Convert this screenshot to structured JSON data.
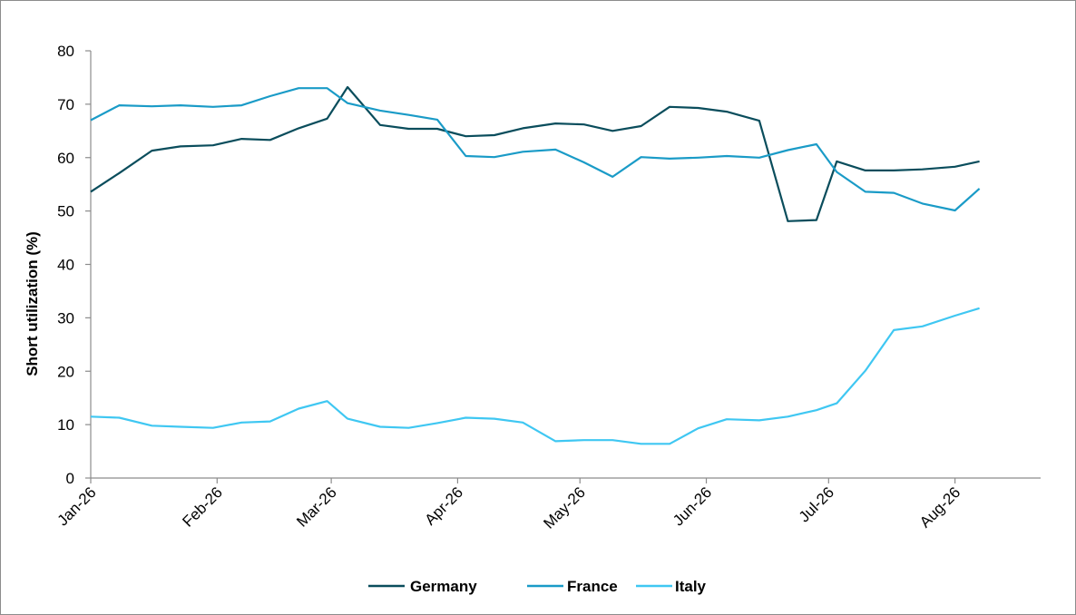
{
  "chart_data": {
    "type": "line",
    "title": "",
    "xlabel": "",
    "ylabel": "Short utilization (%)",
    "ylim": [
      0,
      80
    ],
    "yticks": [
      0,
      10,
      20,
      30,
      40,
      50,
      60,
      70,
      80
    ],
    "xlim": [
      "2026-01-01",
      "2026-08-22"
    ],
    "xticks": [
      {
        "label": "Jan-26",
        "date": "2026-01-01"
      },
      {
        "label": "Feb-26",
        "date": "2026-02-01"
      },
      {
        "label": "Mar-26",
        "date": "2026-03-01"
      },
      {
        "label": "Apr-26",
        "date": "2026-04-01"
      },
      {
        "label": "May-26",
        "date": "2026-05-01"
      },
      {
        "label": "Jun-26",
        "date": "2026-06-01"
      },
      {
        "label": "Jul-26",
        "date": "2026-07-01"
      },
      {
        "label": "Aug-26",
        "date": "2026-08-01"
      }
    ],
    "grid": false,
    "legend_position": "bottom",
    "x": [
      "2026-01-01",
      "2026-01-08",
      "2026-01-16",
      "2026-01-23",
      "2026-01-31",
      "2026-02-07",
      "2026-02-14",
      "2026-02-21",
      "2026-02-28",
      "2026-03-05",
      "2026-03-13",
      "2026-03-20",
      "2026-03-27",
      "2026-04-03",
      "2026-04-10",
      "2026-04-17",
      "2026-04-25",
      "2026-05-02",
      "2026-05-09",
      "2026-05-16",
      "2026-05-23",
      "2026-05-30",
      "2026-06-06",
      "2026-06-14",
      "2026-06-21",
      "2026-06-28",
      "2026-07-03",
      "2026-07-10",
      "2026-07-17",
      "2026-07-24",
      "2026-08-01",
      "2026-08-07"
    ],
    "series": [
      {
        "name": "Germany",
        "color": "#0a4d5c",
        "values": [
          53.6,
          57.1,
          61.3,
          62.1,
          62.3,
          63.5,
          63.3,
          65.5,
          67.3,
          73.2,
          66.1,
          65.4,
          65.4,
          64.0,
          64.2,
          65.5,
          66.4,
          66.2,
          65.0,
          65.9,
          69.5,
          69.3,
          68.6,
          66.9,
          48.1,
          48.3,
          59.3,
          57.6,
          57.6,
          57.8,
          58.3,
          59.3
        ]
      },
      {
        "name": "France",
        "color": "#1a9bc7",
        "values": [
          67.0,
          69.8,
          69.6,
          69.8,
          69.5,
          69.8,
          71.5,
          73.0,
          73.0,
          70.2,
          68.8,
          68.0,
          67.1,
          60.3,
          60.1,
          61.1,
          61.5,
          59.1,
          56.4,
          60.1,
          59.8,
          60.0,
          60.3,
          60.0,
          61.4,
          62.5,
          57.3,
          53.6,
          53.4,
          51.4,
          50.1,
          54.2
        ]
      },
      {
        "name": "Italy",
        "color": "#3fc7f2",
        "values": [
          11.5,
          11.3,
          9.8,
          9.6,
          9.4,
          10.4,
          10.6,
          13.0,
          14.4,
          11.1,
          9.6,
          9.4,
          10.3,
          11.3,
          11.1,
          10.4,
          6.9,
          7.1,
          7.1,
          6.4,
          6.4,
          9.3,
          11.0,
          10.8,
          11.5,
          12.7,
          14.0,
          20.1,
          27.7,
          28.4,
          30.4,
          31.8
        ]
      }
    ]
  }
}
